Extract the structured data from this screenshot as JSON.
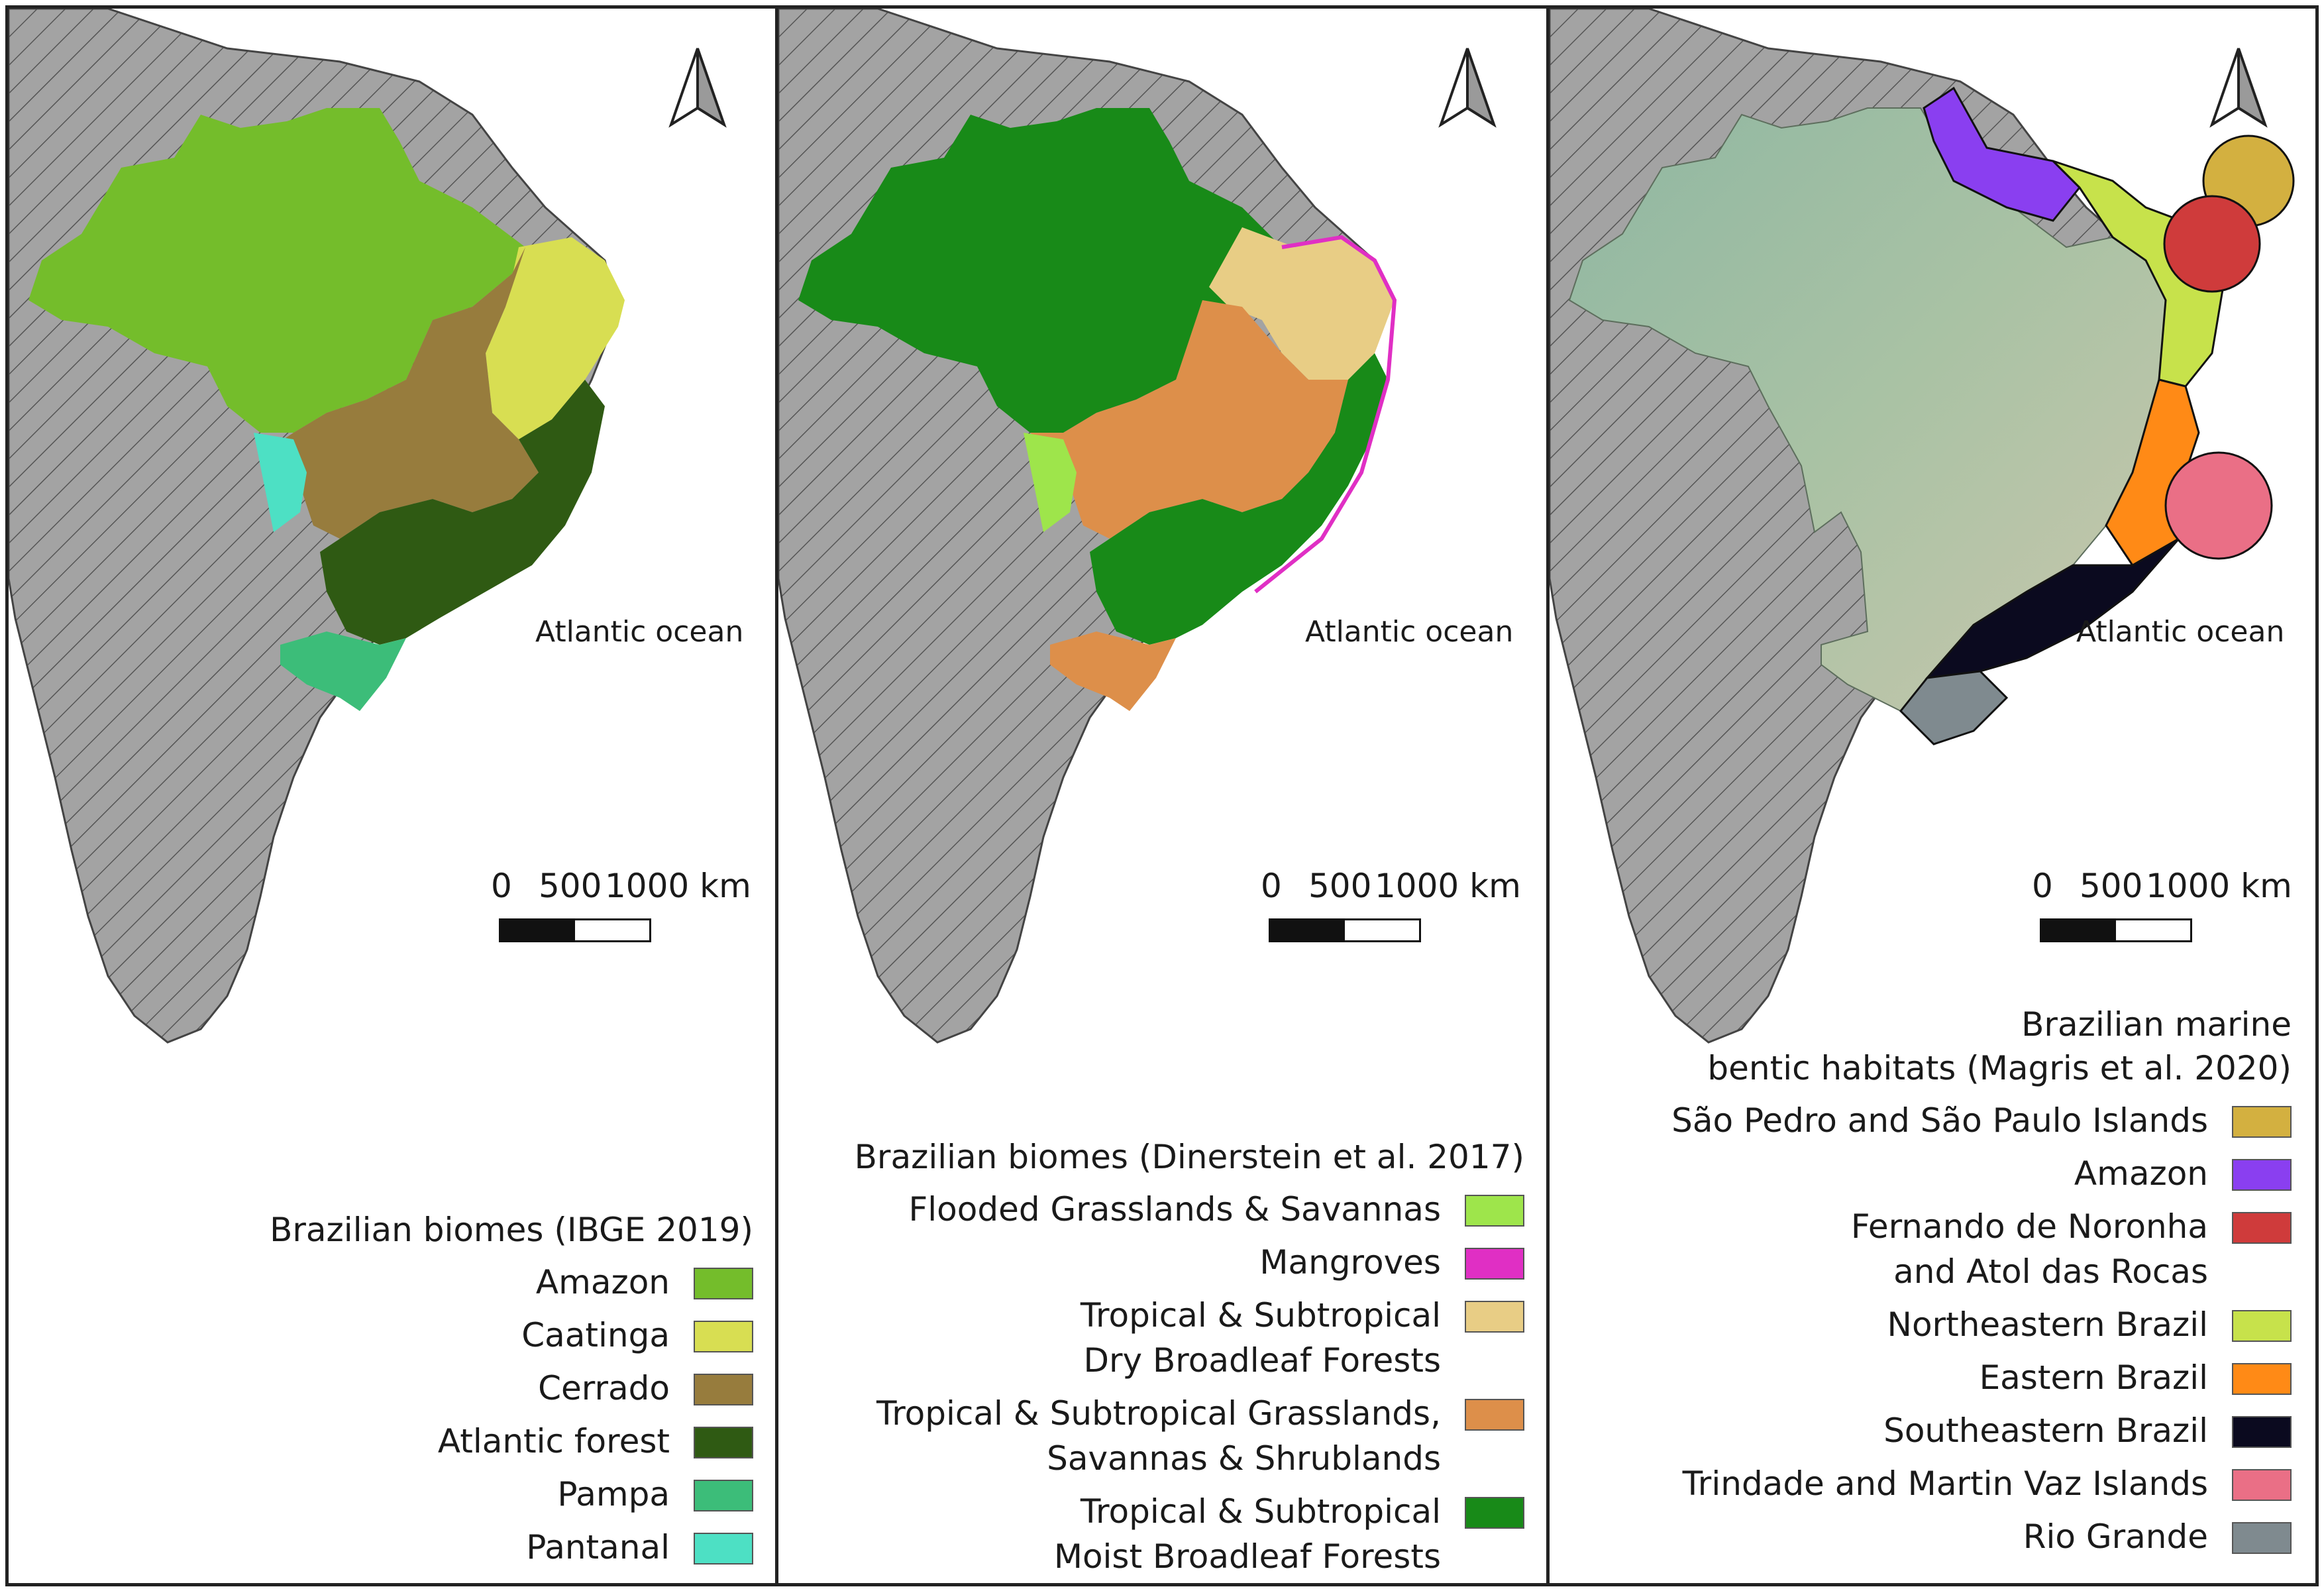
{
  "north_arrow_icon": "north-arrow-icon",
  "panels": [
    {
      "ocean_label": "Atlantic ocean",
      "scale": {
        "zero": "0",
        "mid": "500",
        "end": "1000 km"
      },
      "legend": {
        "title": "Brazilian biomes (IBGE 2019)",
        "items": [
          {
            "label": "Amazon",
            "color": "#74bd2b"
          },
          {
            "label": "Caatinga",
            "color": "#d8de52"
          },
          {
            "label": "Cerrado",
            "color": "#977c3d"
          },
          {
            "label": "Atlantic forest",
            "color": "#2f5a13"
          },
          {
            "label": "Pampa",
            "color": "#3cbd79"
          },
          {
            "label": "Pantanal",
            "color": "#4de0c4"
          }
        ]
      }
    },
    {
      "ocean_label": "Atlantic ocean",
      "scale": {
        "zero": "0",
        "mid": "500",
        "end": "1000 km"
      },
      "legend": {
        "title": "Brazilian biomes (Dinerstein et al. 2017)",
        "items": [
          {
            "label": "Flooded Grasslands & Savannas",
            "color": "#9ee54b"
          },
          {
            "label": "Mangroves",
            "color": "#e02fc4"
          },
          {
            "label": "Tropical & Subtropical\nDry Broadleaf Forests",
            "color": "#e8cd85"
          },
          {
            "label": "Tropical & Subtropical Grasslands,\nSavannas & Shrublands",
            "color": "#dd8f4a"
          },
          {
            "label": "Tropical & Subtropical\nMoist Broadleaf Forests",
            "color": "#188a18"
          }
        ]
      }
    },
    {
      "ocean_label": "Atlantic ocean",
      "scale": {
        "zero": "0",
        "mid": "500",
        "end": "1000 km"
      },
      "legend": {
        "title": "Brazilian marine\nbentic habitats (Magris et al. 2020)",
        "items": [
          {
            "label": "São Pedro and São Paulo Islands",
            "color": "#d3b040"
          },
          {
            "label": "Amazon",
            "color": "#8a3ff0"
          },
          {
            "label": "Fernando de Noronha\nand Atol das Rocas",
            "color": "#cf3b3b"
          },
          {
            "label": "Northeastern Brazil",
            "color": "#c7e24b"
          },
          {
            "label": "Eastern Brazil",
            "color": "#ff8a16"
          },
          {
            "label": "Southeastern Brazil",
            "color": "#0b0a1f"
          },
          {
            "label": "Trindade and Martin Vaz Islands",
            "color": "#ea6f86"
          },
          {
            "label": "Rio Grande",
            "color": "#7f8a8f"
          }
        ]
      }
    }
  ]
}
